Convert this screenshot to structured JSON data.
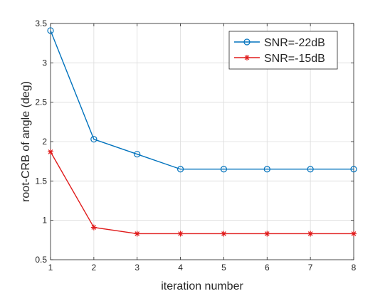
{
  "chart_data": {
    "type": "line",
    "title": "",
    "xlabel": "iteration number",
    "ylabel": "root-CRB of angle (deg)",
    "x": [
      1,
      2,
      3,
      4,
      5,
      6,
      7,
      8
    ],
    "xlim": [
      1,
      8
    ],
    "ylim": [
      0.5,
      3.5
    ],
    "xticks": [
      "1",
      "2",
      "3",
      "4",
      "5",
      "6",
      "7",
      "8"
    ],
    "yticks": [
      "0.5",
      "1",
      "1.5",
      "2",
      "2.5",
      "3",
      "3.5"
    ],
    "grid": true,
    "legend_position": "top-right",
    "series": [
      {
        "name": "SNR=-22dB",
        "color": "#0072bd",
        "marker": "circle",
        "values": [
          3.41,
          2.03,
          1.84,
          1.65,
          1.65,
          1.65,
          1.65,
          1.65
        ]
      },
      {
        "name": "SNR=-15dB",
        "color": "#e01b1b",
        "marker": "asterisk",
        "values": [
          1.87,
          0.91,
          0.83,
          0.83,
          0.83,
          0.83,
          0.83,
          0.83
        ]
      }
    ]
  }
}
